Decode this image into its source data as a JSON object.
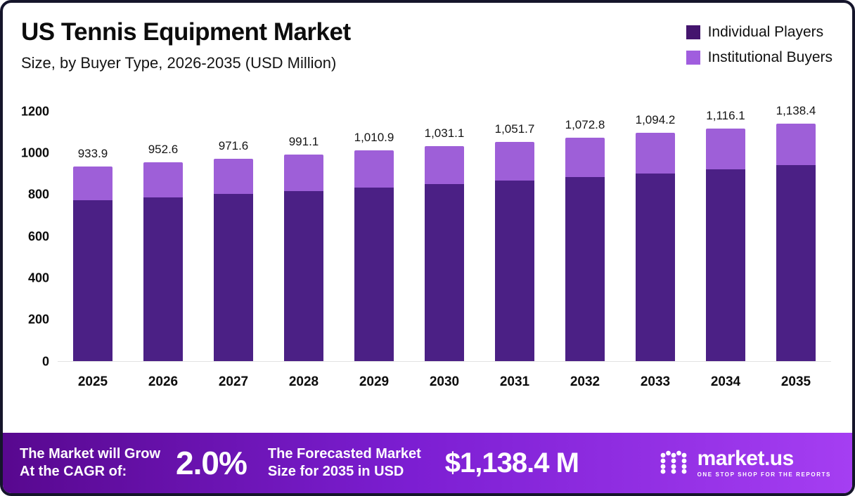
{
  "header": {
    "title": "US Tennis Equipment Market",
    "subtitle": "Size, by Buyer Type, 2026-2035 (USD Million)"
  },
  "legend": [
    {
      "label": "Individual Players",
      "color": "#44156e"
    },
    {
      "label": "Institutional Buyers",
      "color": "#a05dde"
    }
  ],
  "chart_data": {
    "type": "bar",
    "stacked": true,
    "title": "US Tennis Equipment Market Size, by Buyer Type, 2026-2035 (USD Million)",
    "categories": [
      "2025",
      "2026",
      "2027",
      "2028",
      "2029",
      "2030",
      "2031",
      "2032",
      "2033",
      "2034",
      "2035"
    ],
    "series": [
      {
        "name": "Individual Players",
        "color": "#4b2085",
        "values": [
          770,
          786,
          801,
          816,
          832,
          848,
          865,
          882,
          900,
          919,
          938
        ]
      },
      {
        "name": "Institutional Buyers",
        "color": "#9e5fd8",
        "values": [
          163.9,
          166.6,
          170.6,
          175.1,
          178.9,
          183.1,
          186.7,
          190.8,
          194.2,
          197.1,
          200.4
        ]
      }
    ],
    "totals": [
      "933.9",
      "952.6",
      "971.6",
      "991.1",
      "1,010.9",
      "1,031.1",
      "1,051.7",
      "1,072.8",
      "1,094.2",
      "1,116.1",
      "1,138.4"
    ],
    "xlabel": "",
    "ylabel": "",
    "yticks": [
      0,
      200,
      400,
      600,
      800,
      1000,
      1200
    ],
    "ylim": [
      0,
      1200
    ],
    "grid": false,
    "legend_position": "top-right"
  },
  "footer": {
    "cagr_label_line1": "The Market will Grow",
    "cagr_label_line2": "At the CAGR of:",
    "cagr_value": "2.0%",
    "forecast_label_line1": "The Forecasted Market",
    "forecast_label_line2": "Size for 2035 in USD",
    "forecast_value": "$1,138.4 M",
    "brand_name": "market.us",
    "brand_tagline": "ONE STOP SHOP FOR THE REPORTS"
  }
}
